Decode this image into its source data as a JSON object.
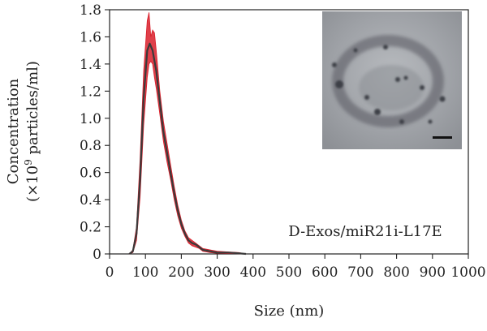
{
  "chart_data": {
    "type": "area",
    "title": "",
    "xlabel": "Size (nm)",
    "ylabel_line1": "Concentration",
    "ylabel_line2_prefix": "(×10",
    "ylabel_line2_sup": "9",
    "ylabel_line2_suffix": " particles/ml)",
    "xlim": [
      0,
      1000
    ],
    "ylim": [
      0,
      1.8
    ],
    "xticks": [
      0,
      100,
      200,
      300,
      400,
      500,
      600,
      700,
      800,
      900,
      1000
    ],
    "yticks": [
      0,
      0.2,
      0.4,
      0.6,
      0.8,
      1.0,
      1.2,
      1.4,
      1.6,
      1.8
    ],
    "ytick_labels": [
      "0",
      "0.2",
      "0.4",
      "0.6",
      "0.8",
      "1.0",
      "1.2",
      "1.4",
      "1.6",
      "1.8"
    ],
    "grid": false,
    "annotation": "D-Exos/miR21i-L17E",
    "series": [
      {
        "role": "mean",
        "color": "#3a3a3a",
        "x": [
          55,
          65,
          75,
          85,
          95,
          105,
          112,
          120,
          130,
          140,
          150,
          160,
          170,
          180,
          190,
          200,
          210,
          220,
          230,
          240,
          250,
          260,
          280,
          300,
          330,
          360,
          380
        ],
        "y": [
          0,
          0.02,
          0.15,
          0.55,
          1.15,
          1.5,
          1.55,
          1.5,
          1.35,
          1.12,
          0.9,
          0.75,
          0.6,
          0.45,
          0.32,
          0.22,
          0.15,
          0.1,
          0.08,
          0.07,
          0.05,
          0.03,
          0.02,
          0.01,
          0.01,
          0.005,
          0
        ]
      },
      {
        "role": "error-upper",
        "color": "#d91e2a",
        "x": [
          55,
          65,
          75,
          85,
          95,
          105,
          110,
          115,
          120,
          125,
          130,
          140,
          150,
          160,
          170,
          180,
          190,
          200,
          210,
          220,
          230,
          240,
          250,
          260,
          280,
          300,
          330,
          360,
          380
        ],
        "y": [
          0,
          0.03,
          0.2,
          0.7,
          1.35,
          1.72,
          1.78,
          1.6,
          1.65,
          1.63,
          1.5,
          1.2,
          0.98,
          0.82,
          0.66,
          0.5,
          0.36,
          0.25,
          0.17,
          0.12,
          0.1,
          0.08,
          0.06,
          0.04,
          0.03,
          0.02,
          0.015,
          0.01,
          0
        ]
      },
      {
        "role": "error-lower",
        "color": "#d91e2a",
        "x": [
          55,
          65,
          75,
          85,
          95,
          105,
          110,
          115,
          120,
          125,
          130,
          140,
          150,
          160,
          170,
          180,
          190,
          200,
          210,
          220,
          230,
          240,
          250,
          260,
          280,
          300,
          330,
          360,
          380
        ],
        "y": [
          0,
          0.01,
          0.1,
          0.42,
          0.95,
          1.3,
          1.4,
          1.42,
          1.4,
          1.3,
          1.22,
          1.03,
          0.83,
          0.68,
          0.55,
          0.4,
          0.28,
          0.19,
          0.13,
          0.08,
          0.06,
          0.05,
          0.04,
          0.02,
          0.01,
          0.005,
          0.003,
          0.002,
          0
        ]
      }
    ],
    "inset": {
      "description_role": "micrograph",
      "background": "#9a9da2"
    }
  }
}
